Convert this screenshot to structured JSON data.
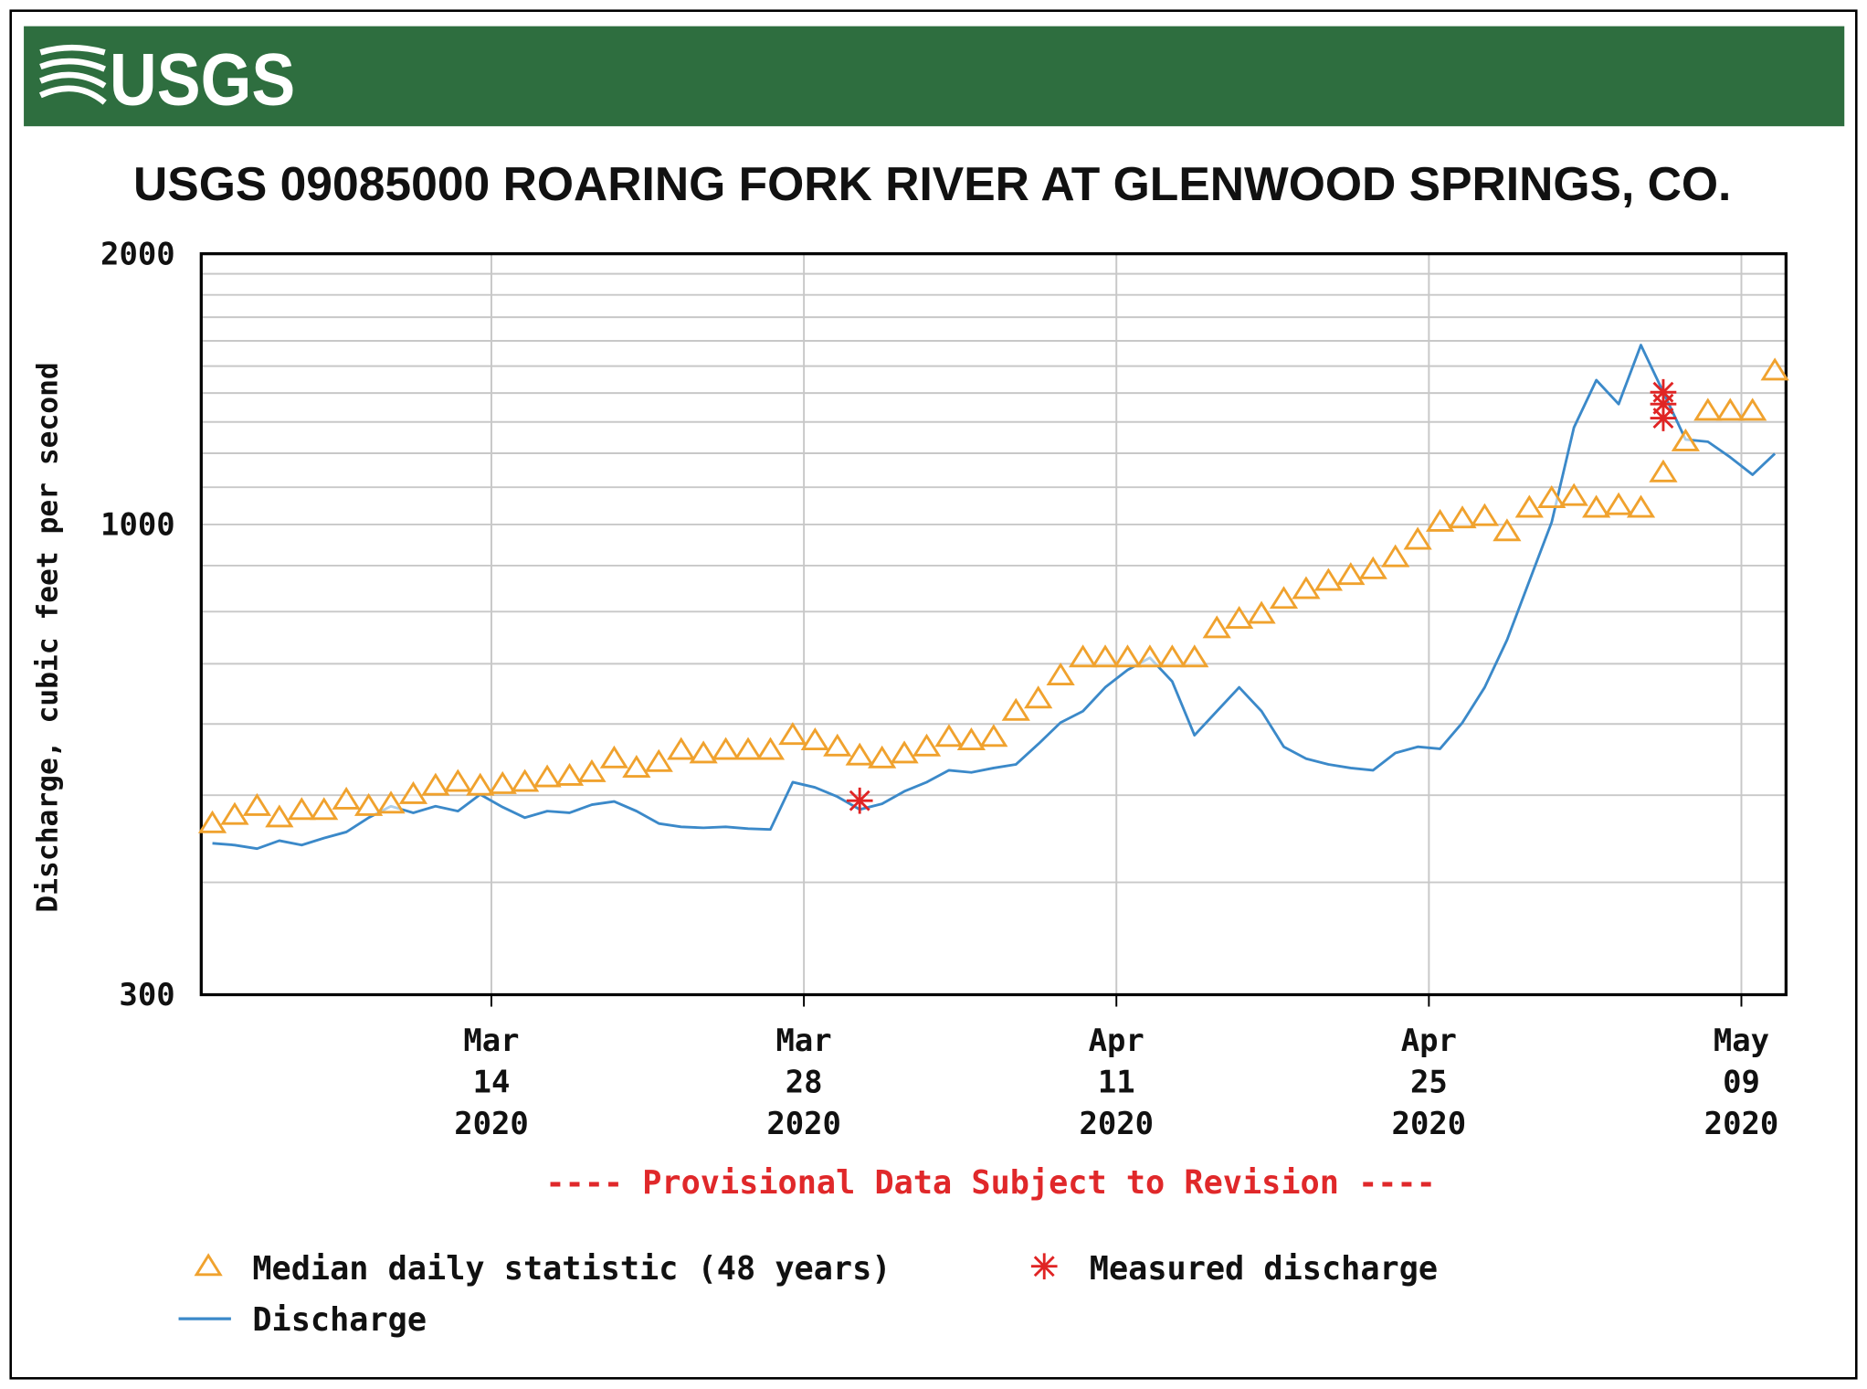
{
  "header": {
    "logo": "USGS"
  },
  "chart_data": {
    "type": "line",
    "title": "USGS 09085000 ROARING FORK RIVER AT GLENWOOD SPRINGS, CO.",
    "y_label": "Discharge, cubic feet per second",
    "annotation": "---- Provisional Data Subject to Revision ----",
    "log_scale_y": true,
    "grid": true,
    "xlim": [
      "2020-03-01",
      "2020-05-11"
    ],
    "xticks": [
      {
        "value": "2020-03-14",
        "label": [
          "Mar",
          "14",
          "2020"
        ]
      },
      {
        "value": "2020-03-28",
        "label": [
          "Mar",
          "28",
          "2020"
        ]
      },
      {
        "value": "2020-04-11",
        "label": [
          "Apr",
          "11",
          "2020"
        ]
      },
      {
        "value": "2020-04-25",
        "label": [
          "Apr",
          "25",
          "2020"
        ]
      },
      {
        "value": "2020-05-09",
        "label": [
          "May",
          "09",
          "2020"
        ]
      }
    ],
    "ylim": [
      300,
      2000
    ],
    "yticks": [
      300,
      1000,
      2000
    ],
    "yminor": [
      400,
      500,
      600,
      700,
      800,
      900,
      1100,
      1200,
      1300,
      1400,
      1500,
      1600,
      1700,
      1800,
      1900
    ],
    "x": [
      "2020-03-01",
      "2020-03-02",
      "2020-03-03",
      "2020-03-04",
      "2020-03-05",
      "2020-03-06",
      "2020-03-07",
      "2020-03-08",
      "2020-03-09",
      "2020-03-10",
      "2020-03-11",
      "2020-03-12",
      "2020-03-13",
      "2020-03-14",
      "2020-03-15",
      "2020-03-16",
      "2020-03-17",
      "2020-03-18",
      "2020-03-19",
      "2020-03-20",
      "2020-03-21",
      "2020-03-22",
      "2020-03-23",
      "2020-03-24",
      "2020-03-25",
      "2020-03-26",
      "2020-03-27",
      "2020-03-28",
      "2020-03-29",
      "2020-03-30",
      "2020-03-31",
      "2020-04-01",
      "2020-04-02",
      "2020-04-03",
      "2020-04-04",
      "2020-04-05",
      "2020-04-06",
      "2020-04-07",
      "2020-04-08",
      "2020-04-09",
      "2020-04-10",
      "2020-04-11",
      "2020-04-12",
      "2020-04-13",
      "2020-04-14",
      "2020-04-15",
      "2020-04-16",
      "2020-04-17",
      "2020-04-18",
      "2020-04-19",
      "2020-04-20",
      "2020-04-21",
      "2020-04-22",
      "2020-04-23",
      "2020-04-24",
      "2020-04-25",
      "2020-04-26",
      "2020-04-27",
      "2020-04-28",
      "2020-04-29",
      "2020-04-30",
      "2020-05-01",
      "2020-05-02",
      "2020-05-03",
      "2020-05-04",
      "2020-05-05",
      "2020-05-06",
      "2020-05-07",
      "2020-05-08",
      "2020-05-09",
      "2020-05-10"
    ],
    "series": [
      {
        "name": "Median daily statistic (48 years)",
        "color": "#f0a22e",
        "marker": "triangle",
        "values": [
          465,
          475,
          486,
          472,
          481,
          481,
          494,
          486,
          489,
          501,
          512,
          517,
          512,
          514,
          517,
          523,
          525,
          530,
          549,
          536,
          544,
          561,
          556,
          561,
          561,
          561,
          583,
          575,
          566,
          553,
          549,
          556,
          566,
          580,
          575,
          580,
          620,
          640,
          679,
          711,
          711,
          711,
          711,
          711,
          711,
          766,
          785,
          795,
          826,
          847,
          865,
          878,
          891,
          919,
          961,
          1006,
          1015,
          1021,
          982,
          1043,
          1069,
          1075,
          1043,
          1050,
          1043,
          1142,
          1236,
          1337,
          1337,
          1337,
          1482
        ]
      },
      {
        "name": "Measured discharge",
        "color": "#e02424",
        "marker": "asterisk",
        "x": [
          "2020-03-30",
          "2020-05-05",
          "2020-05-05",
          "2020-05-05"
        ],
        "values": [
          493,
          1403,
          1361,
          1313
        ]
      },
      {
        "name": "Discharge",
        "color": "#3b89c9",
        "marker": "line",
        "values": [
          442,
          440,
          436,
          445,
          440,
          448,
          455,
          472,
          486,
          478,
          486,
          480,
          501,
          485,
          472,
          480,
          478,
          488,
          492,
          480,
          465,
          461,
          460,
          461,
          459,
          458,
          517,
          510,
          498,
          482,
          489,
          505,
          517,
          533,
          530,
          536,
          541,
          570,
          602,
          620,
          659,
          689,
          711,
          669,
          583,
          620,
          659,
          620,
          566,
          549,
          541,
          536,
          533,
          557,
          566,
          563,
          602,
          659,
          744,
          865,
          1006,
          1282,
          1447,
          1361,
          1583,
          1403,
          1243,
          1236,
          1188,
          1136,
          1199
        ]
      }
    ]
  }
}
